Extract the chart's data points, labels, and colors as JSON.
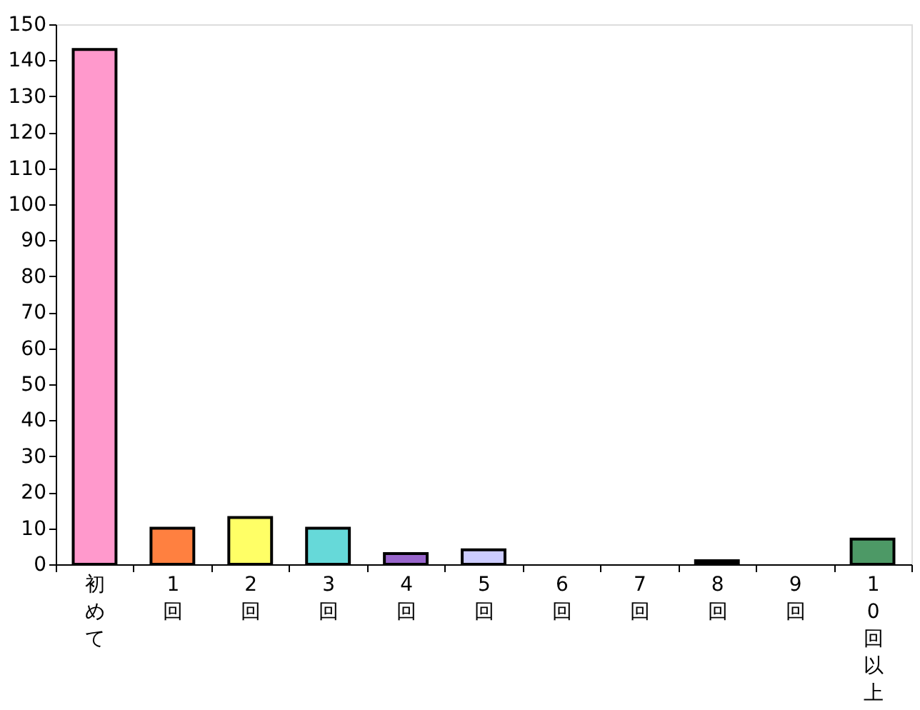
{
  "chart_data": {
    "type": "bar",
    "categories": [
      "初めて",
      "1回",
      "2回",
      "3回",
      "4回",
      "5回",
      "6回",
      "7回",
      "8回",
      "9回",
      "10回以上"
    ],
    "values": [
      143,
      10,
      13,
      10,
      3,
      4,
      0,
      0,
      1,
      0,
      7
    ],
    "colors": [
      "#ff99cc",
      "#ff8040",
      "#ffff66",
      "#66d9d9",
      "#9966cc",
      "#ccccff",
      "#ffffff",
      "#ffffff",
      "#000000",
      "#ffffff",
      "#4d9966"
    ],
    "ylim": [
      0,
      150
    ],
    "yticks": [
      0,
      10,
      20,
      30,
      40,
      50,
      60,
      70,
      80,
      90,
      100,
      110,
      120,
      130,
      140,
      150
    ],
    "grid": false,
    "legend": false
  }
}
